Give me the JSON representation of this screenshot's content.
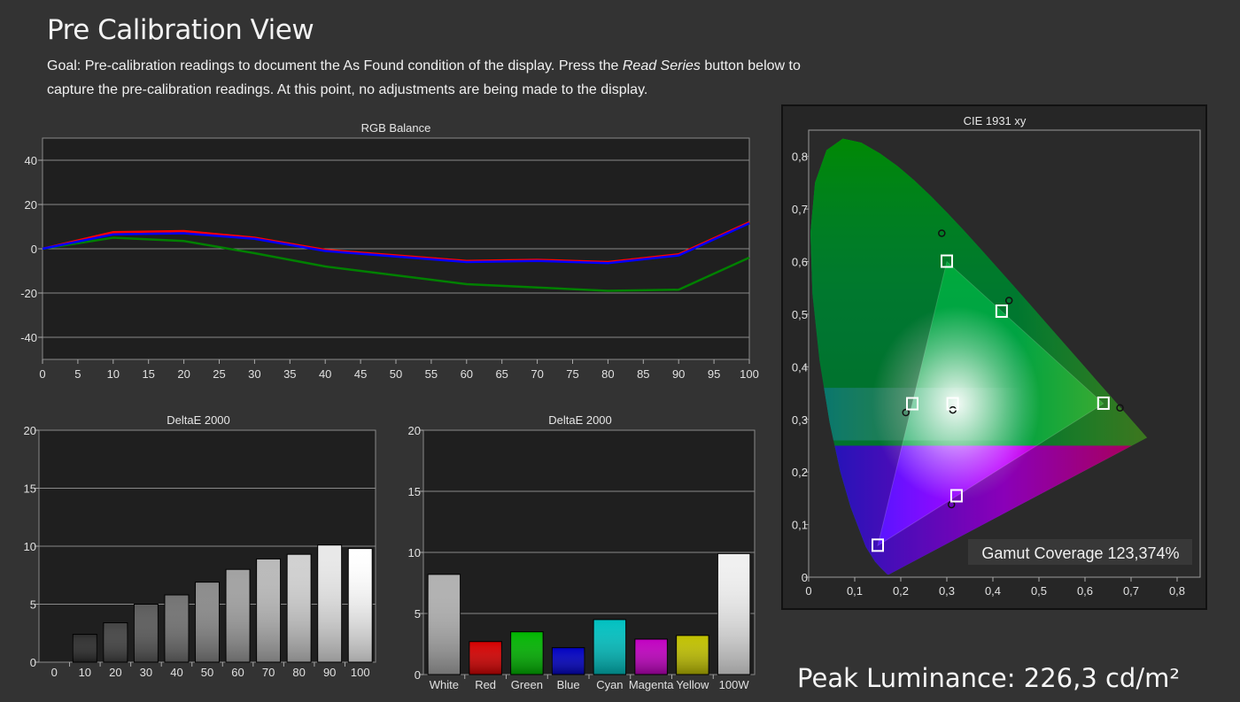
{
  "page": {
    "title": "Pre Calibration View",
    "goal_prefix": "Goal: Pre-calibration readings to document the As Found condition of the display. Press the ",
    "goal_emph": "Read Series",
    "goal_suffix": " button below to capture the pre-calibration readings. At this point, no adjustments are being made to the display.",
    "peak_luminance": "Peak Luminance: 226,3 cd/m²"
  },
  "colors": {
    "background": "#333333",
    "plot_background": "#1f1f1f",
    "red": "#ff0000",
    "green": "#008000",
    "blue": "#0000ff"
  },
  "chart_data": [
    {
      "id": "rgb-balance",
      "type": "line",
      "title": "RGB Balance",
      "x": [
        0,
        10,
        20,
        30,
        40,
        50,
        60,
        70,
        80,
        90,
        100
      ],
      "xticks": [
        "0",
        "5",
        "10",
        "15",
        "20",
        "25",
        "30",
        "35",
        "40",
        "45",
        "50",
        "55",
        "60",
        "65",
        "70",
        "75",
        "80",
        "85",
        "90",
        "95",
        "100"
      ],
      "yticks": [
        "40",
        "20",
        "0",
        "-20",
        "-40"
      ],
      "xlim": [
        0,
        100
      ],
      "ylim": [
        -50,
        50
      ],
      "grid": true,
      "series": [
        {
          "color": "#ff0000",
          "values": [
            0,
            7.5,
            8,
            5,
            -0.5,
            -3,
            -5.5,
            -5,
            -6,
            -2.5,
            12
          ]
        },
        {
          "color": "#008000",
          "values": [
            0,
            5,
            3.5,
            -2,
            -8,
            -12,
            -16,
            -17.5,
            -19,
            -18.5,
            -4
          ]
        },
        {
          "color": "#0000ff",
          "values": [
            0,
            6.5,
            7,
            4.5,
            -1,
            -3.5,
            -6,
            -5.5,
            -6.5,
            -3,
            11.5
          ]
        }
      ]
    },
    {
      "id": "deltae-grayscale",
      "type": "bar",
      "title": "DeltaE 2000",
      "categories": [
        "0",
        "10",
        "20",
        "30",
        "40",
        "50",
        "60",
        "70",
        "80",
        "90",
        "100"
      ],
      "values": [
        0,
        2.4,
        3.4,
        5.0,
        5.8,
        6.9,
        8.0,
        8.9,
        9.3,
        10.1,
        9.8
      ],
      "yticks": [
        "20",
        "15",
        "10",
        "5",
        "0"
      ],
      "ylim": [
        0,
        20
      ],
      "grid": true
    },
    {
      "id": "deltae-colors",
      "type": "bar",
      "title": "DeltaE 2000",
      "categories": [
        "White",
        "Red",
        "Green",
        "Blue",
        "Cyan",
        "Magenta",
        "Yellow",
        "100W"
      ],
      "values": [
        8.2,
        2.7,
        3.5,
        2.2,
        4.5,
        2.9,
        3.2,
        9.9
      ],
      "bar_colors": [
        "#b0b0b0",
        "#d40000",
        "#00b400",
        "#0000c0",
        "#00c0c0",
        "#c000c0",
        "#c0c000",
        "#f0f0f0"
      ],
      "yticks": [
        "20",
        "15",
        "10",
        "5",
        "0"
      ],
      "ylim": [
        0,
        20
      ],
      "grid": true
    },
    {
      "id": "cie-1931",
      "type": "scatter",
      "title": "CIE 1931 xy",
      "xticks": [
        "0",
        "0,1",
        "0,2",
        "0,3",
        "0,4",
        "0,5",
        "0,6",
        "0,7",
        "0,8"
      ],
      "yticks": [
        "0,8",
        "0,7",
        "0,6",
        "0,5",
        "0,4",
        "0,3",
        "0,2",
        "0,1",
        "0"
      ],
      "xlim": [
        0,
        0.85
      ],
      "ylim": [
        0,
        0.85
      ],
      "targets": [
        {
          "x": 0.64,
          "y": 0.33
        },
        {
          "x": 0.3,
          "y": 0.6
        },
        {
          "x": 0.15,
          "y": 0.06
        },
        {
          "x": 0.225,
          "y": 0.329
        },
        {
          "x": 0.321,
          "y": 0.154
        },
        {
          "x": 0.419,
          "y": 0.505
        },
        {
          "x": 0.3127,
          "y": 0.329
        }
      ],
      "measured": [
        {
          "x": 0.676,
          "y": 0.322
        },
        {
          "x": 0.289,
          "y": 0.654
        },
        {
          "x": 0.211,
          "y": 0.313
        },
        {
          "x": 0.31,
          "y": 0.138
        },
        {
          "x": 0.435,
          "y": 0.526
        },
        {
          "x": 0.313,
          "y": 0.318
        }
      ],
      "gamut_coverage": "Gamut Coverage 123,374%"
    }
  ]
}
